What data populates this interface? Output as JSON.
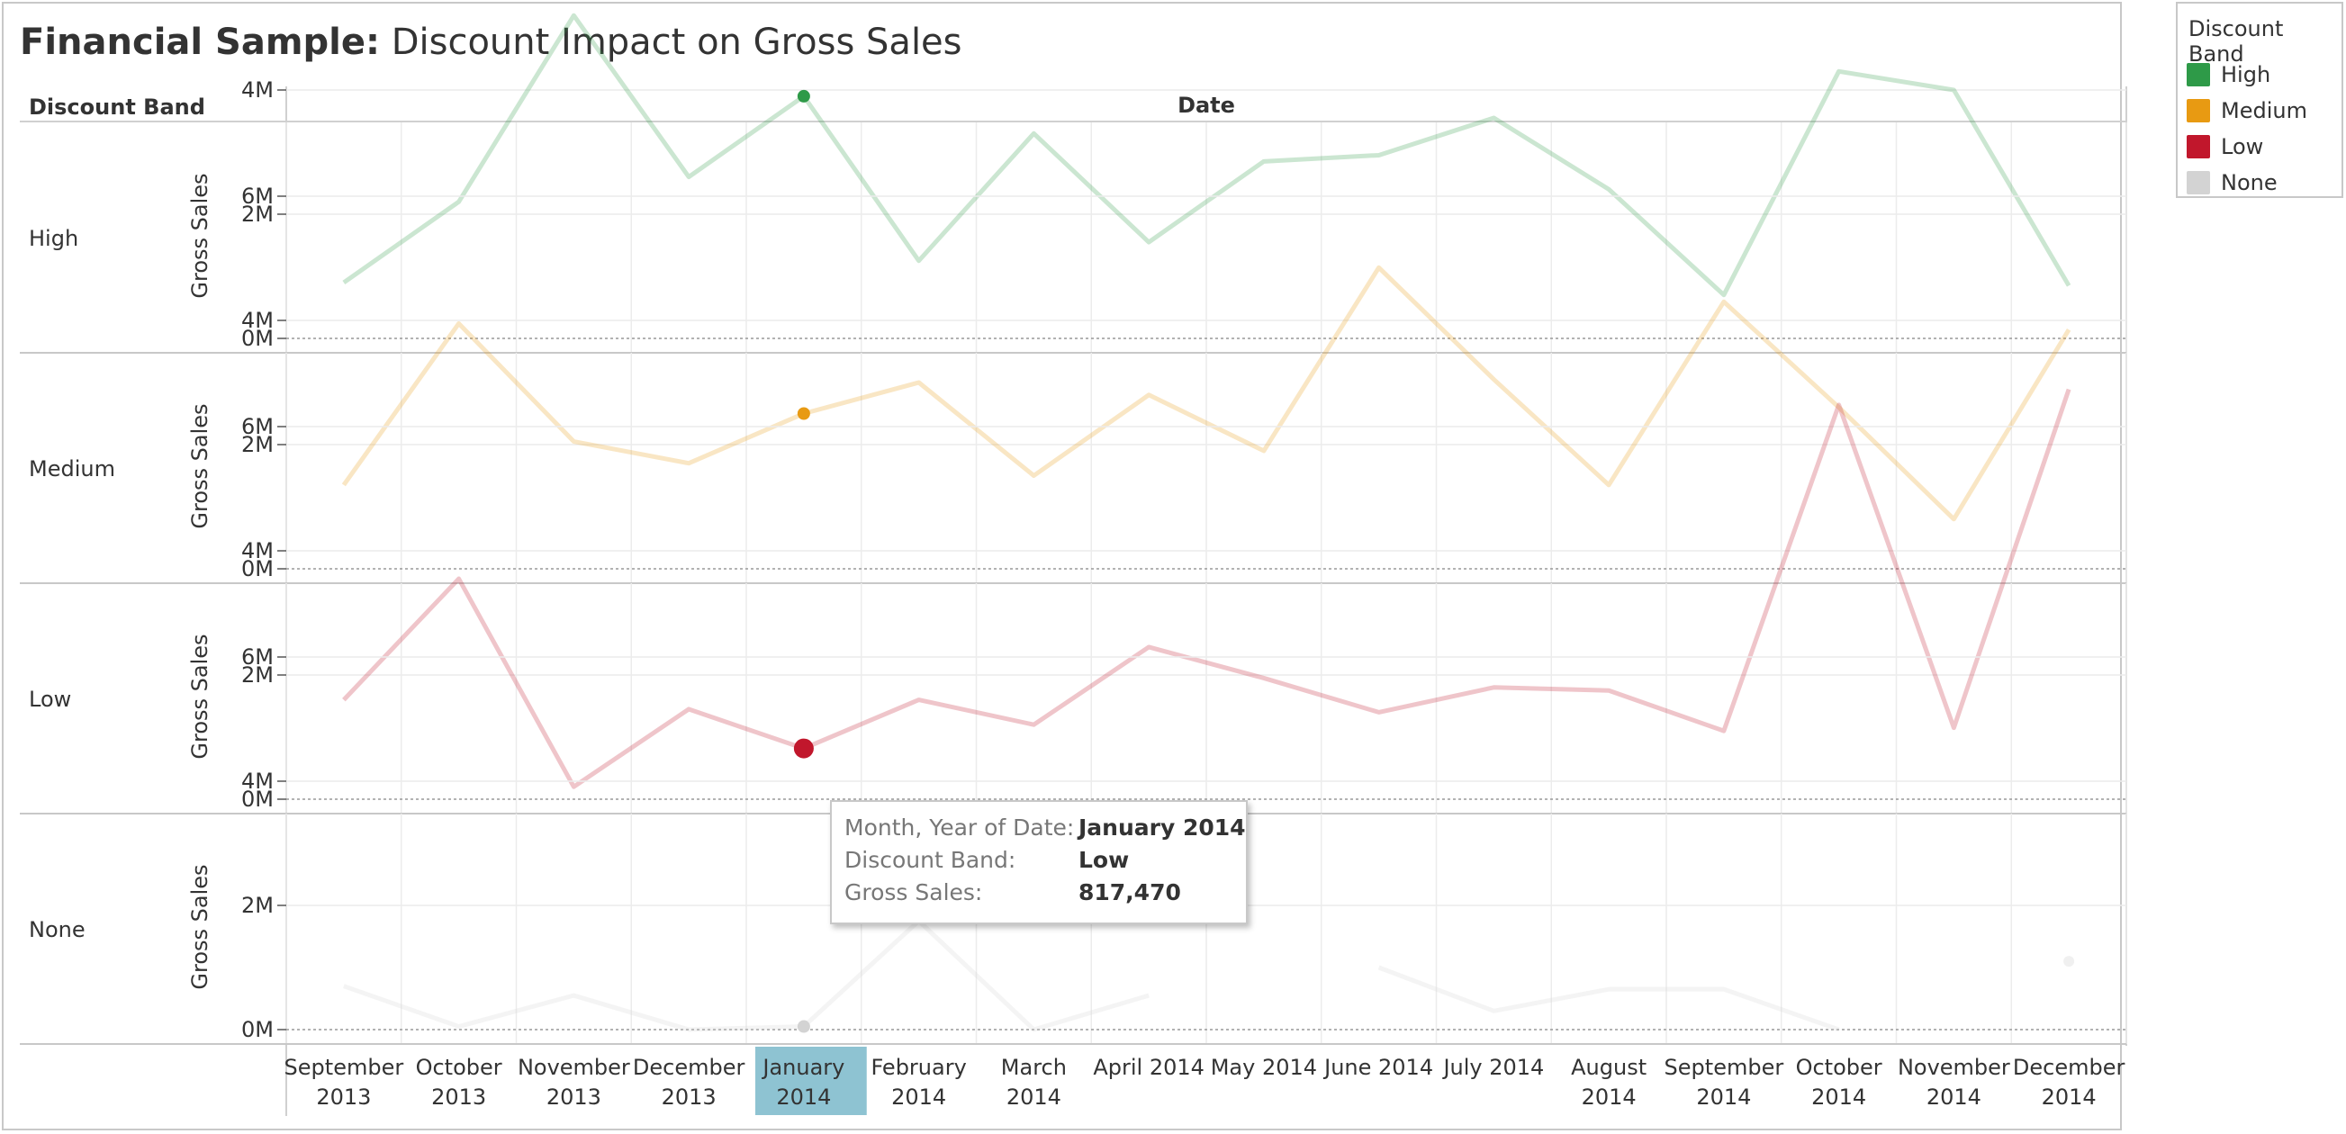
{
  "title": {
    "bold": "Financial Sample:",
    "rest": " Discount Impact on Gross Sales"
  },
  "header": {
    "row_label": "Discount Band",
    "column_label": "Date"
  },
  "colors": {
    "High": "#2e9a48",
    "Medium": "#e89a12",
    "Low": "#c1172c",
    "None": "#d3d3d3"
  },
  "legend": {
    "title": "Discount Band",
    "items": [
      {
        "label": "High",
        "color": "#2e9a48"
      },
      {
        "label": "Medium",
        "color": "#e89a12"
      },
      {
        "label": "Low",
        "color": "#c1172c"
      },
      {
        "label": "None",
        "color": "#d3d3d3"
      }
    ]
  },
  "tooltip": {
    "rows": [
      {
        "key": "Month, Year of Date:",
        "value": "January 2014"
      },
      {
        "key": "Discount Band:",
        "value": "Low"
      },
      {
        "key": "Gross Sales:",
        "value": "817,470"
      }
    ]
  },
  "chart_data": {
    "type": "line",
    "title": "Financial Sample: Discount Impact on Gross Sales",
    "xlabel": "Date",
    "ylabel": "Gross Sales",
    "ylim": [
      0,
      7000000
    ],
    "yticks": [
      0,
      2000000,
      4000000,
      6000000
    ],
    "ytick_labels": [
      "0M",
      "2M",
      "4M",
      "6M"
    ],
    "categories": [
      [
        "September",
        "2013"
      ],
      [
        "October",
        "2013"
      ],
      [
        "November",
        "2013"
      ],
      [
        "December",
        "2013"
      ],
      [
        "January",
        "2014"
      ],
      [
        "February",
        "2014"
      ],
      [
        "March",
        "2014"
      ],
      [
        "April 2014"
      ],
      [
        "May 2014"
      ],
      [
        "June 2014"
      ],
      [
        "July 2014"
      ],
      [
        "August",
        "2014"
      ],
      [
        "September",
        "2014"
      ],
      [
        "October",
        "2014"
      ],
      [
        "November",
        "2014"
      ],
      [
        "December",
        "2014"
      ]
    ],
    "highlighted_category": 4,
    "grid": true,
    "legend_position": "right",
    "series": [
      {
        "name": "High",
        "values": [
          900000,
          2200000,
          5200000,
          2600000,
          3900000,
          1250000,
          3300000,
          1550000,
          2850000,
          2950000,
          3550000,
          2400000,
          700000,
          4300000,
          4000000,
          850000
        ]
      },
      {
        "name": "Medium",
        "values": [
          1350000,
          3950000,
          2050000,
          1700000,
          2500000,
          3000000,
          1500000,
          2800000,
          1900000,
          4850000,
          3050000,
          1350000,
          4300000,
          2600000,
          800000,
          3850000
        ]
      },
      {
        "name": "Low",
        "values": [
          1600000,
          3550000,
          200000,
          1450000,
          817470,
          1600000,
          1200000,
          2450000,
          1950000,
          1400000,
          1800000,
          1750000,
          1100000,
          6350000,
          1150000,
          6600000
        ]
      },
      {
        "name": "None",
        "values": [
          700000,
          50000,
          550000,
          0,
          50000,
          1750000,
          0,
          550000,
          null,
          1000000,
          300000,
          650000,
          650000,
          0,
          null,
          1100000
        ]
      }
    ]
  }
}
